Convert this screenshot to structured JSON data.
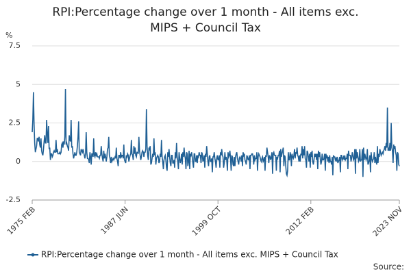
{
  "chart_data": {
    "type": "line",
    "title": "RPI:Percentage change over 1 month - All items exc. MIPS + Council Tax",
    "y_unit": "%",
    "source": "Source:",
    "ylim": [
      -2.5,
      7.5
    ],
    "yticks": [
      -2.5,
      0,
      2.5,
      5,
      7.5
    ],
    "grid": true,
    "legend": "bottom",
    "categories": [
      "1975 FEB",
      null,
      null,
      null,
      null,
      null,
      null,
      null,
      null,
      null,
      null,
      null,
      null,
      null,
      null,
      null,
      null,
      null,
      null,
      null,
      null,
      null,
      null,
      null,
      null,
      null,
      null,
      null,
      null,
      null,
      null,
      null,
      null,
      null,
      null,
      null,
      null,
      null,
      null,
      null,
      null,
      null,
      null,
      null,
      null,
      null,
      null,
      null,
      null,
      null,
      null,
      null,
      null,
      null,
      null,
      null,
      null,
      null,
      null,
      null,
      null,
      null,
      null,
      null,
      null,
      null,
      null,
      null,
      null,
      null,
      null,
      null,
      null,
      null,
      null,
      null,
      null,
      null,
      null,
      null,
      null,
      null,
      null,
      null,
      null,
      null,
      null,
      null,
      null,
      null,
      null,
      null,
      null,
      null,
      null,
      null,
      null,
      null,
      null,
      null,
      null,
      null,
      null,
      null,
      null,
      null,
      null,
      null,
      null,
      null,
      null,
      null,
      null,
      null,
      null,
      null,
      null,
      null,
      null,
      null,
      null,
      null,
      null,
      null,
      null,
      null,
      null,
      null,
      null,
      null,
      null,
      null,
      null,
      null,
      null,
      null,
      null,
      null,
      null,
      null,
      null,
      null,
      null,
      null,
      null,
      null,
      null,
      null,
      "1987 JUN",
      null,
      null,
      null,
      null,
      null,
      null,
      null,
      null,
      null,
      null,
      null,
      null,
      null,
      null,
      null,
      null,
      null,
      null,
      null,
      null,
      null,
      null,
      null,
      null,
      null,
      null,
      null,
      null,
      null,
      null,
      null,
      null,
      null,
      null,
      null,
      null,
      null,
      null,
      null,
      null,
      null,
      null,
      null,
      null,
      null,
      null,
      null,
      null,
      null,
      null,
      null,
      null,
      null,
      null,
      null,
      null,
      null,
      null,
      null,
      null,
      null,
      null,
      null,
      null,
      null,
      null,
      null,
      null,
      null,
      null,
      null,
      null,
      null,
      null,
      null,
      null,
      null,
      null,
      null,
      null,
      null,
      null,
      null,
      null,
      null,
      null,
      null,
      null,
      null,
      null,
      null,
      null,
      null,
      null,
      null,
      null,
      null,
      null,
      null,
      null,
      null,
      null,
      null,
      null,
      null,
      null,
      null,
      null,
      null,
      null,
      null,
      null,
      null,
      null,
      null,
      null,
      null,
      null,
      null,
      null,
      null,
      null,
      null,
      null,
      null,
      null,
      null,
      null,
      null,
      null,
      null,
      null,
      null,
      null,
      null,
      null,
      null,
      null,
      null,
      null,
      null,
      null,
      null,
      null,
      null,
      null,
      null,
      "1999 OCT",
      null,
      null,
      null,
      null,
      null,
      null,
      null,
      null,
      null,
      null,
      null,
      null,
      null,
      null,
      null,
      null,
      null,
      null,
      null,
      null,
      null,
      null,
      null,
      null,
      null,
      null,
      null,
      null,
      null,
      null,
      null,
      null,
      null,
      null,
      null,
      null,
      null,
      null,
      null,
      null,
      null,
      null,
      null,
      null,
      null,
      null,
      null,
      null,
      null,
      null,
      null,
      null,
      null,
      null,
      null,
      null,
      null,
      null,
      null,
      null,
      null,
      null,
      null,
      null,
      null,
      null,
      null,
      null,
      null,
      null,
      null,
      null,
      null,
      null,
      null,
      null,
      null,
      null,
      null,
      null,
      null,
      null,
      null,
      null,
      null,
      null,
      null,
      null,
      null,
      null,
      null,
      null,
      null,
      null,
      null,
      null,
      null,
      null,
      null,
      null,
      null,
      null,
      null,
      null,
      null,
      null,
      null,
      null,
      null,
      null,
      null,
      null,
      null,
      null,
      null,
      null,
      null,
      null,
      null,
      null,
      null,
      null,
      null,
      null,
      null,
      null,
      null,
      null,
      null,
      null,
      null,
      null,
      null,
      null,
      null,
      null,
      null,
      null,
      null,
      null,
      null,
      null,
      null,
      null,
      null,
      null,
      null,
      "2012 FEB",
      null,
      null,
      null,
      null,
      null,
      null,
      null,
      null,
      null,
      null,
      null,
      null,
      null,
      null,
      null,
      null,
      null,
      null,
      null,
      null,
      null,
      null,
      null,
      null,
      null,
      null,
      null,
      null,
      null,
      null,
      null,
      null,
      null,
      null,
      null,
      null,
      null,
      null,
      null,
      null,
      null,
      null,
      null,
      null,
      null,
      null,
      null,
      null,
      null,
      null,
      null,
      null,
      null,
      null,
      null,
      null,
      null,
      null,
      null,
      null,
      null,
      null,
      null,
      null,
      null,
      null,
      null,
      null,
      null,
      null,
      null,
      null,
      null,
      null,
      null,
      null,
      null,
      null,
      null,
      null,
      null,
      null,
      null,
      null,
      null,
      null,
      null,
      null,
      null,
      null,
      null,
      null,
      null,
      null,
      null,
      null,
      null,
      null,
      null,
      null,
      null,
      null,
      null,
      null,
      null,
      null,
      null,
      null,
      null,
      null,
      null,
      null,
      null,
      null,
      null,
      null,
      null,
      null,
      null,
      null,
      null,
      null,
      null,
      null,
      null,
      null,
      null,
      null,
      null,
      null,
      null,
      null,
      null,
      null,
      null,
      null,
      null,
      null,
      null,
      null,
      "2023 NOV"
    ],
    "series": [
      {
        "name": "RPI:Percentage change over 1 month - All items exc. MIPS + Council Tax",
        "color": "#206095",
        "values": [
          1.9,
          2.7,
          4.5,
          2.4,
          1.2,
          0.6,
          0.8,
          1.0,
          1.5,
          1.5,
          1.3,
          1.6,
          1.1,
          0.9,
          1.5,
          0.7,
          0.5,
          0.4,
          0.8,
          1.3,
          1.7,
          1.2,
          1.2,
          2.7,
          1.8,
          1.2,
          2.3,
          0.8,
          0.9,
          0.1,
          0.5,
          0.5,
          0.3,
          0.4,
          0.6,
          0.7,
          0.6,
          0.6,
          1.4,
          0.6,
          0.8,
          0.5,
          0.5,
          0.5,
          0.6,
          0.5,
          0.6,
          1.1,
          1.2,
          0.9,
          1.3,
          1.1,
          1.6,
          4.7,
          1.1,
          1.2,
          1.0,
          0.9,
          0.7,
          1.7,
          1.4,
          1.3,
          2.7,
          0.9,
          1.0,
          0.5,
          0.2,
          0.4,
          0.6,
          0.4,
          0.4,
          0.6,
          1.0,
          1.6,
          2.6,
          0.6,
          0.5,
          0.4,
          0.8,
          0.7,
          0.6,
          0.8,
          0.6,
          0.4,
          0.2,
          0.5,
          1.9,
          0.6,
          0.2,
          0.2,
          0.1,
          -0.1,
          0.6,
          0.3,
          -0.2,
          0.5,
          0.5,
          0.3,
          1.5,
          0.4,
          0.3,
          0.6,
          0.4,
          0.5,
          0.3,
          0.3,
          0.3,
          0.2,
          0.4,
          0.4,
          1.0,
          0.5,
          0.2,
          0.0,
          0.7,
          0.2,
          0.5,
          0.3,
          0.0,
          0.3,
          0.8,
          0.9,
          1.6,
          0.4,
          0.2,
          -0.1,
          0.3,
          0.0,
          0.1,
          0.2,
          0.1,
          0.2,
          0.3,
          0.2,
          0.9,
          0.2,
          0.0,
          -0.3,
          0.4,
          0.4,
          0.2,
          0.6,
          0.3,
          0.4,
          0.4,
          0.2,
          1.1,
          0.1,
          0.0,
          -0.1,
          0.4,
          0.3,
          0.5,
          0.4,
          0.0,
          0.2,
          0.4,
          0.5,
          1.4,
          0.5,
          0.4,
          0.1,
          1.0,
          0.5,
          0.9,
          0.4,
          0.3,
          0.6,
          0.6,
          0.5,
          1.6,
          0.7,
          0.4,
          0.1,
          0.3,
          0.6,
          0.7,
          0.6,
          0.3,
          0.6,
          0.6,
          0.8,
          3.4,
          1.0,
          0.4,
          0.1,
          0.9,
          0.8,
          1.0,
          -0.2,
          -0.1,
          0.2,
          0.5,
          0.3,
          1.5,
          0.4,
          0.6,
          -0.2,
          0.2,
          0.3,
          0.4,
          0.3,
          -0.1,
          0.0,
          0.5,
          0.3,
          1.4,
          0.3,
          0.0,
          -0.5,
          0.1,
          0.3,
          0.4,
          0.1,
          -0.4,
          -0.6,
          0.6,
          0.3,
          0.8,
          0.3,
          -0.1,
          -0.3,
          0.4,
          0.4,
          -0.1,
          -0.1,
          0.1,
          -0.4,
          0.6,
          0.2,
          1.2,
          0.3,
          0.0,
          -0.5,
          0.6,
          0.2,
          -0.1,
          0.1,
          0.5,
          -0.2,
          0.6,
          0.3,
          0.9,
          0.4,
          0.2,
          -0.5,
          0.6,
          0.5,
          -0.3,
          0.0,
          0.7,
          -0.5,
          0.5,
          0.4,
          0.6,
          0.3,
          -0.1,
          -0.4,
          0.5,
          0.5,
          0.0,
          0.0,
          0.4,
          -0.1,
          0.4,
          0.3,
          0.6,
          0.4,
          0.4,
          -0.1,
          0.6,
          0.5,
          0.0,
          0.1,
          0.4,
          -0.4,
          0.5,
          0.3,
          1.0,
          0.5,
          0.0,
          -0.3,
          0.3,
          0.4,
          0.0,
          0.0,
          0.2,
          -0.7,
          0.3,
          0.3,
          0.6,
          0.2,
          0.0,
          -0.4,
          0.2,
          0.4,
          0.1,
          0.1,
          0.4,
          -0.4,
          0.6,
          0.4,
          0.8,
          0.4,
          0.3,
          -0.4,
          -0.1,
          0.6,
          0.1,
          0.3,
          0.1,
          -0.6,
          0.6,
          0.3,
          0.4,
          0.7,
          0.2,
          -0.6,
          0.4,
          0.3,
          -0.2,
          -0.3,
          0.3,
          -0.3,
          0.3,
          0.5,
          0.6,
          0.2,
          0.0,
          -0.2,
          0.2,
          0.3,
          0.2,
          0.0,
          0.4,
          -0.3,
          0.6,
          0.4,
          0.5,
          0.1,
          0.0,
          -0.2,
          0.4,
          0.3,
          0.1,
          0.1,
          0.4,
          -0.5,
          0.4,
          0.4,
          0.5,
          0.5,
          0.3,
          -0.2,
          0.4,
          0.1,
          0.2,
          0.2,
          0.6,
          -0.6,
          0.3,
          0.5,
          0.4,
          0.3,
          0.1,
          0.0,
          0.2,
          0.3,
          0.0,
          0.1,
          0.3,
          -0.6,
          0.4,
          0.3,
          0.9,
          0.6,
          0.3,
          -0.1,
          0.4,
          0.3,
          0.1,
          0.3,
          0.6,
          -0.8,
          0.5,
          0.6,
          0.4,
          0.4,
          0.4,
          -0.6,
          0.3,
          0.2,
          0.4,
          0.4,
          0.7,
          -0.7,
          0.8,
          0.3,
          0.5,
          0.7,
          0.9,
          -0.3,
          0.4,
          0.3,
          -0.3,
          -0.8,
          -0.9,
          -0.6,
          0.6,
          0.1,
          0.1,
          0.6,
          0.4,
          -0.3,
          0.5,
          0.3,
          0.2,
          0.4,
          0.8,
          0.2,
          0.6,
          0.5,
          0.9,
          0.4,
          0.3,
          0.0,
          0.4,
          0.0,
          0.5,
          0.4,
          1.0,
          0.2,
          0.8,
          0.4,
          1.0,
          0.2,
          0.1,
          -0.4,
          0.7,
          0.6,
          0.3,
          0.0,
          0.5,
          -0.4,
          0.6,
          0.3,
          0.7,
          0.0,
          -0.2,
          0.1,
          0.5,
          0.3,
          0.5,
          0.1,
          0.5,
          -0.5,
          0.7,
          0.3,
          0.6,
          0.2,
          -0.2,
          0.0,
          0.5,
          0.1,
          0.1,
          0.2,
          0.5,
          -0.6,
          0.5,
          0.2,
          0.4,
          0.0,
          0.3,
          -0.1,
          0.4,
          0.0,
          0.0,
          -0.2,
          0.3,
          -0.9,
          0.4,
          0.3,
          0.3,
          0.1,
          0.2,
          0.0,
          0.3,
          -0.1,
          0.0,
          0.1,
          0.3,
          -0.7,
          0.4,
          0.4,
          0.1,
          0.2,
          0.3,
          0.1,
          0.4,
          0.1,
          0.2,
          0.2,
          0.5,
          -0.5,
          0.7,
          0.4,
          0.4,
          0.4,
          0.0,
          0.2,
          0.6,
          0.4,
          0.1,
          0.2,
          0.8,
          -0.8,
          0.8,
          0.2,
          0.6,
          0.3,
          0.0,
          0.1,
          0.8,
          0.0,
          0.1,
          0.1,
          0.8,
          -1.0,
          0.9,
          0.1,
          0.5,
          0.3,
          0.1,
          0.2,
          0.8,
          -0.2,
          -0.1,
          0.1,
          0.4,
          -0.7,
          0.6,
          0.2,
          0.0,
          0.1,
          0.2,
          0.6,
          -0.1,
          0.3,
          0.0,
          -0.2,
          1.0,
          -0.1,
          0.5,
          0.3,
          0.8,
          0.6,
          0.4,
          0.5,
          0.6,
          0.5,
          0.7,
          0.8,
          1.0,
          0.7,
          1.2,
          0.9,
          3.5,
          0.7,
          0.9,
          0.7,
          1.2,
          0.7,
          2.5,
          0.9,
          0.7,
          -0.1,
          1.1,
          0.8,
          1.0,
          0.6,
          0.4,
          -0.6,
          0.6,
          0.5,
          -0.2,
          -0.3
        ]
      }
    ]
  }
}
